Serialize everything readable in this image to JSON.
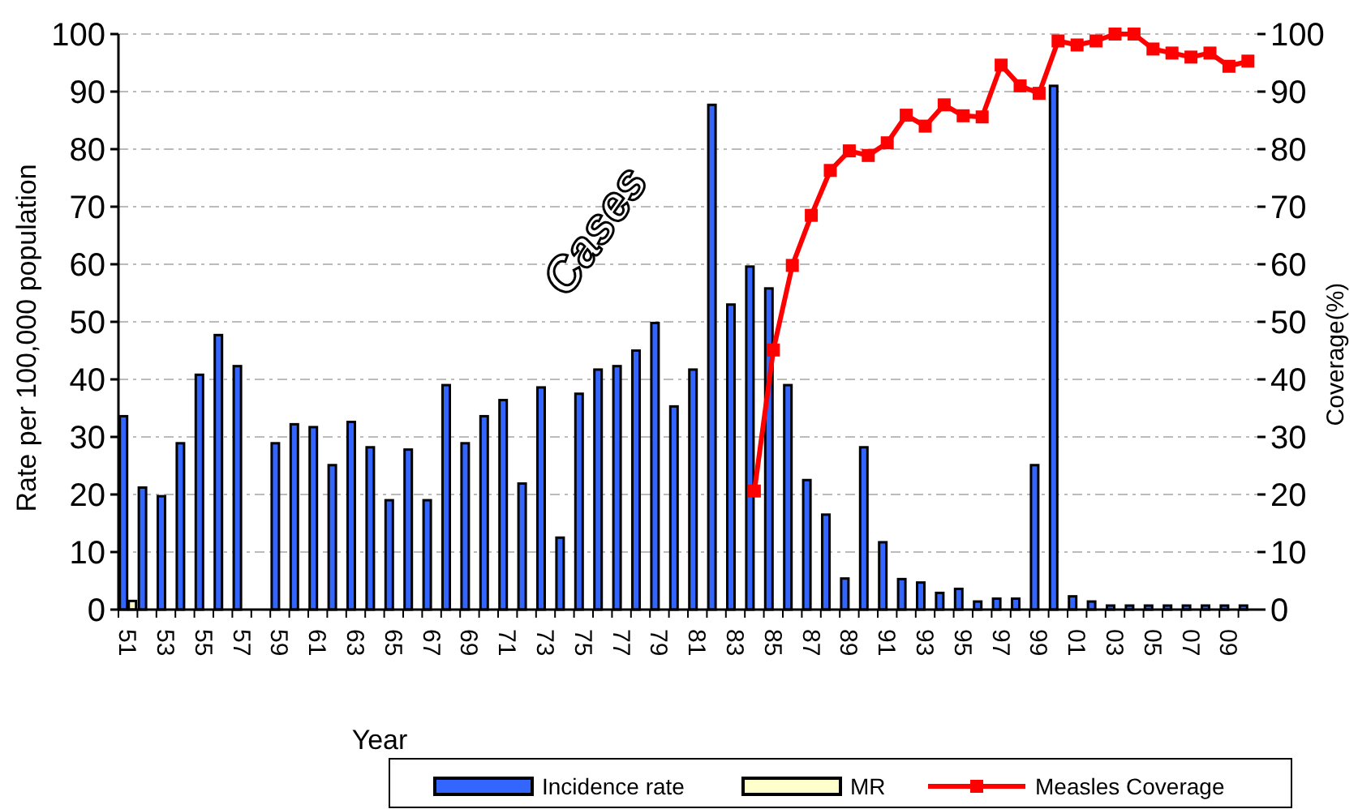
{
  "chart_data": {
    "type": "bar",
    "xlabel": "Year",
    "ylabel": "Rate per 100,000 population",
    "y2label": "Coverage(%)",
    "categories": [
      "51",
      null,
      "53",
      null,
      "55",
      null,
      "57",
      null,
      "59",
      null,
      "61",
      null,
      "63",
      null,
      "65",
      null,
      "67",
      null,
      "69",
      null,
      "71",
      null,
      "73",
      null,
      "75",
      null,
      "77",
      null,
      "79",
      null,
      "81",
      null,
      "83",
      null,
      "85",
      null,
      "87",
      null,
      "89",
      null,
      "91",
      null,
      "93",
      null,
      "95",
      null,
      "97",
      null,
      "99",
      null,
      "01",
      null,
      "03",
      null,
      "05",
      null,
      "07",
      null,
      "09",
      null
    ],
    "series": [
      {
        "name": "Incidence rate",
        "color": "#3366ff",
        "values": [
          33.6,
          21.2,
          19.7,
          28.9,
          40.8,
          47.7,
          42.3,
          null,
          28.9,
          32.2,
          31.7,
          25.1,
          32.6,
          28.2,
          19,
          27.8,
          19,
          39,
          28.9,
          33.6,
          36.4,
          21.9,
          38.6,
          12.5,
          37.5,
          41.7,
          42.3,
          45,
          49.8,
          35.3,
          41.7,
          87.7,
          53,
          59.6,
          55.8,
          39,
          22.5,
          16.5,
          5.4,
          28.2,
          11.7,
          5.3,
          4.7,
          2.9,
          3.6,
          1.4,
          1.9,
          1.9,
          25.1,
          91,
          2.3,
          1.4,
          0.7,
          0.7,
          0.7,
          0.7,
          0.7,
          0.7,
          0.7,
          0.7
        ]
      },
      {
        "name": "MR",
        "color": "#ffffcc",
        "values": [
          1.5,
          null,
          null,
          null,
          null,
          null,
          null,
          null,
          null,
          null,
          null,
          null,
          null,
          null,
          null,
          null,
          null,
          null,
          null,
          null,
          null,
          null,
          null,
          null,
          null,
          null,
          null,
          null,
          null,
          null,
          null,
          null,
          null,
          null,
          null,
          null,
          null,
          null,
          null,
          null,
          null,
          null,
          null,
          null,
          null,
          null,
          null,
          null,
          null,
          null,
          null,
          null,
          null,
          null,
          null,
          null,
          null,
          null,
          null,
          null
        ]
      },
      {
        "name": "Measles Coverage",
        "type": "line",
        "axis": "y2",
        "color": "#ff0000",
        "marker": "square",
        "line_style": "solid",
        "values": [
          null,
          null,
          null,
          null,
          null,
          null,
          null,
          null,
          null,
          null,
          null,
          null,
          null,
          null,
          null,
          null,
          null,
          null,
          null,
          null,
          null,
          null,
          null,
          null,
          null,
          null,
          null,
          null,
          null,
          null,
          null,
          null,
          null,
          20.6,
          45.1,
          59.8,
          68.5,
          76.3,
          79.7,
          78.9,
          81.1,
          85.9,
          84,
          87.7,
          85.8,
          85.6,
          94.6,
          91,
          89.7,
          98.8,
          98.1,
          98.8,
          100,
          100,
          97.4,
          96.7,
          96,
          96.7,
          94.4,
          95.3
        ]
      }
    ],
    "ylim": [
      0,
      100
    ],
    "yticks": [
      0,
      10,
      20,
      30,
      40,
      50,
      60,
      70,
      80,
      90,
      100
    ],
    "y2lim": [
      0,
      100
    ],
    "y2ticks": [
      0,
      10,
      20,
      30,
      40,
      50,
      60,
      70,
      80,
      90,
      100
    ],
    "grid": "y",
    "legend": "bottom",
    "annotations": [
      "Cases"
    ]
  }
}
